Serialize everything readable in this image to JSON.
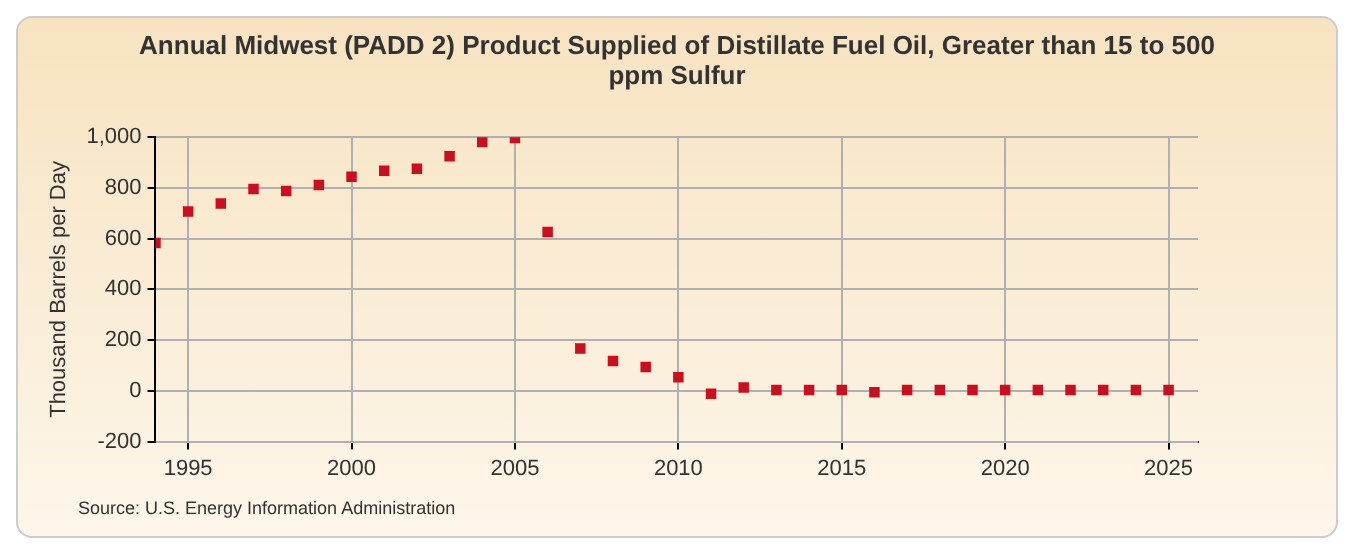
{
  "chart_data": {
    "type": "scatter",
    "title": "Annual Midwest (PADD 2) Product Supplied of Distillate Fuel Oil, Greater than 15 to 500 ppm Sulfur",
    "ylabel": "Thousand Barrels per Day",
    "annotations": [
      "Source: U.S. Energy Information Administration"
    ],
    "x": [
      1994,
      1995,
      1996,
      1997,
      1998,
      1999,
      2000,
      2001,
      2002,
      2003,
      2004,
      2005,
      2006,
      2007,
      2008,
      2009,
      2010,
      2011,
      2012,
      2013,
      2014,
      2015,
      2016,
      2017,
      2018,
      2019,
      2020,
      2021,
      2022,
      2023,
      2024,
      2025
    ],
    "series": [
      {
        "color": "#cc0e1e",
        "values": [
          583,
          707,
          739,
          796,
          788,
          812,
          844,
          868,
          876,
          925,
          981,
          997,
          626,
          167,
          118,
          94,
          54,
          -11,
          13,
          3,
          3,
          3,
          -5,
          3,
          3,
          3,
          3,
          3,
          3,
          3,
          3,
          3
        ]
      }
    ],
    "xlim": [
      1994,
      2025.9
    ],
    "xticks": [
      1995,
      2000,
      2005,
      2010,
      2015,
      2020,
      2025
    ],
    "ylim": [
      -200,
      1000
    ],
    "yticks": [
      -200,
      0,
      200,
      400,
      600,
      800,
      {
        "value": 1000,
        "label": "1,000"
      }
    ],
    "grid": true,
    "legend": false,
    "marker": "square"
  }
}
